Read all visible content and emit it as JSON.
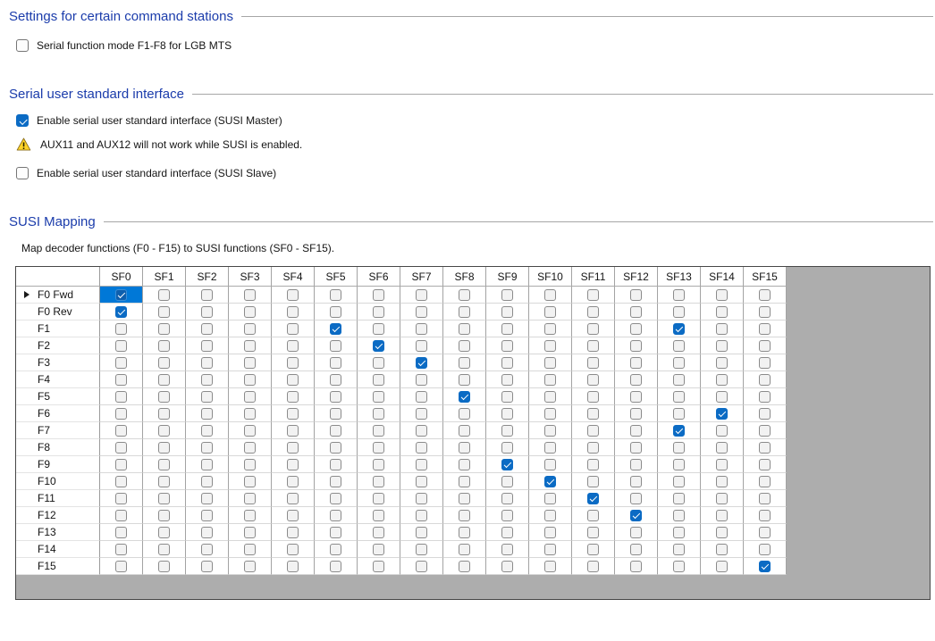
{
  "colors": {
    "heading": "#1b3cab",
    "rule": "#a6a6a6",
    "accent": "#0b6bc4",
    "selected": "#0078d7",
    "grid-bg": "#adadad",
    "warning-yellow": "#ffd42a"
  },
  "sections": {
    "command_stations": {
      "title": "Settings for certain command stations",
      "lgb_checkbox": {
        "label": "Serial function mode F1-F8 for LGB MTS",
        "checked": false
      }
    },
    "susi_interface": {
      "title": "Serial user standard interface",
      "master_checkbox": {
        "label": "Enable serial user standard interface (SUSI Master)",
        "checked": true
      },
      "warning": {
        "icon": "warning-triangle-icon",
        "text": "AUX11 and AUX12 will not work while SUSI is enabled."
      },
      "slave_checkbox": {
        "label": "Enable serial user standard interface (SUSI Slave)",
        "checked": false
      }
    },
    "susi_mapping": {
      "title": "SUSI Mapping",
      "description": "Map decoder functions (F0 - F15) to SUSI functions (SF0 - SF15).",
      "grid": {
        "columns": [
          "SF0",
          "SF1",
          "SF2",
          "SF3",
          "SF4",
          "SF5",
          "SF6",
          "SF7",
          "SF8",
          "SF9",
          "SF10",
          "SF11",
          "SF12",
          "SF13",
          "SF14",
          "SF15"
        ],
        "rows": [
          {
            "label": "F0 Fwd",
            "checked": [
              "SF0"
            ]
          },
          {
            "label": "F0 Rev",
            "checked": [
              "SF0"
            ]
          },
          {
            "label": "F1",
            "checked": [
              "SF5",
              "SF13"
            ]
          },
          {
            "label": "F2",
            "checked": [
              "SF6"
            ]
          },
          {
            "label": "F3",
            "checked": [
              "SF7"
            ]
          },
          {
            "label": "F4",
            "checked": []
          },
          {
            "label": "F5",
            "checked": [
              "SF8"
            ]
          },
          {
            "label": "F6",
            "checked": [
              "SF14"
            ]
          },
          {
            "label": "F7",
            "checked": [
              "SF13"
            ]
          },
          {
            "label": "F8",
            "checked": []
          },
          {
            "label": "F9",
            "checked": [
              "SF9"
            ]
          },
          {
            "label": "F10",
            "checked": [
              "SF10"
            ]
          },
          {
            "label": "F11",
            "checked": [
              "SF11"
            ]
          },
          {
            "label": "F12",
            "checked": [
              "SF12"
            ]
          },
          {
            "label": "F13",
            "checked": []
          },
          {
            "label": "F14",
            "checked": []
          },
          {
            "label": "F15",
            "checked": [
              "SF15"
            ]
          }
        ],
        "selected_cell": {
          "row": "F0 Fwd",
          "column": "SF0"
        }
      }
    }
  }
}
